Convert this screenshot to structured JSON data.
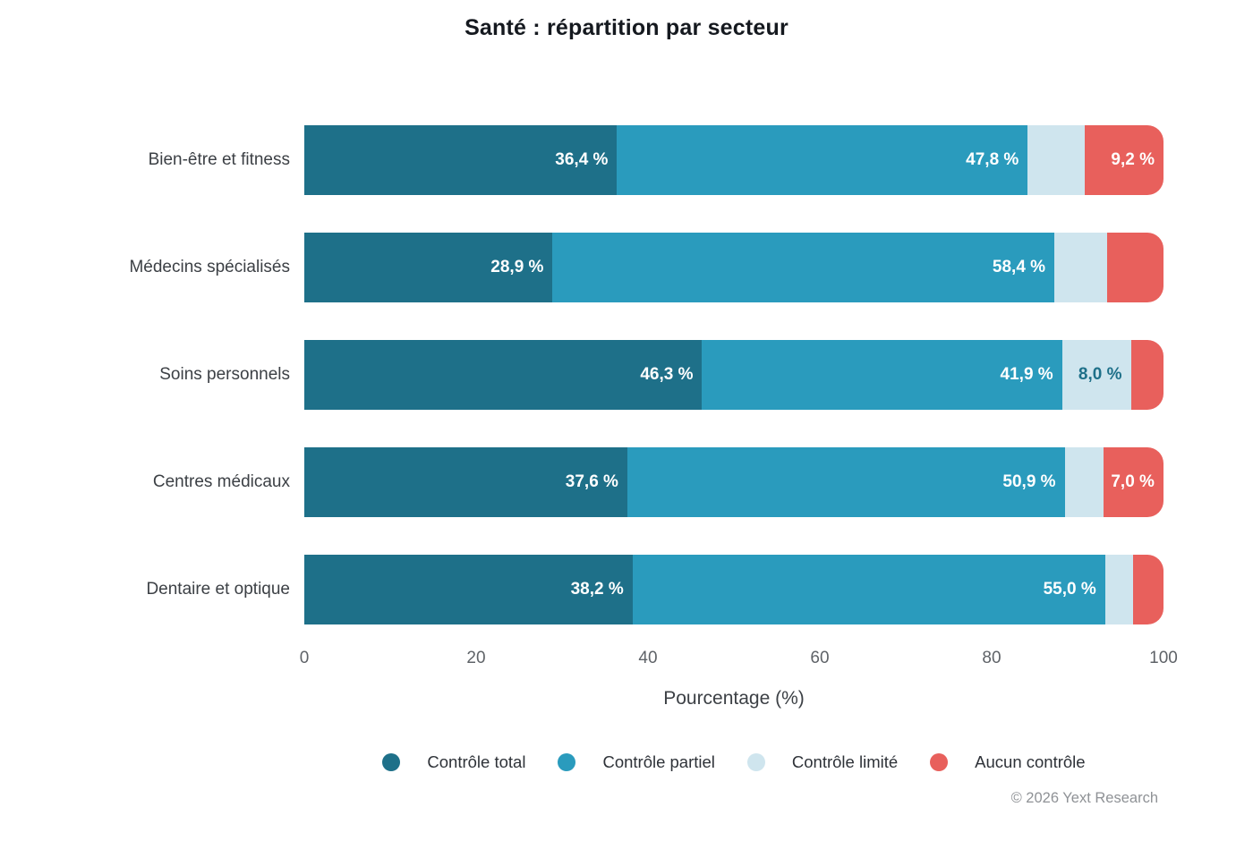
{
  "footer": "© 2026 Yext Research",
  "chart_data": {
    "type": "bar",
    "variant": "horizontal-stacked",
    "title": "Santé : répartition par secteur",
    "xlabel": "Pourcentage (%)",
    "xlim": [
      0,
      100
    ],
    "x_ticks": [
      0,
      20,
      40,
      60,
      80,
      100
    ],
    "grid": false,
    "legend_position": "bottom",
    "categories": [
      "Bien-être et fitness",
      "Médecins spécialisés",
      "Soins personnels",
      "Centres médicaux",
      "Dentaire et optique"
    ],
    "series": [
      {
        "name": "Contrôle total",
        "color": "#1e7089",
        "label_color": "#ffffff",
        "values": [
          36.4,
          28.9,
          46.3,
          37.6,
          38.2
        ],
        "labels": [
          "36,4 %",
          "28,9 %",
          "46,3 %",
          "37,6 %",
          "38,2 %"
        ]
      },
      {
        "name": "Contrôle partiel",
        "color": "#2a9bbd",
        "label_color": "#ffffff",
        "values": [
          47.8,
          58.4,
          41.9,
          50.9,
          55.0
        ],
        "labels": [
          "47,8 %",
          "58,4 %",
          "41,9 %",
          "50,9 %",
          "55,0 %"
        ]
      },
      {
        "name": "Contrôle limité",
        "color": "#cfe5ee",
        "label_color": "#1e7089",
        "values": [
          6.6,
          6.1,
          8.0,
          4.5,
          3.3
        ],
        "labels": [
          null,
          null,
          "8,0 %",
          null,
          null
        ]
      },
      {
        "name": "Aucun contrôle",
        "color": "#e8605c",
        "label_color": "#ffffff",
        "values": [
          9.2,
          6.6,
          3.8,
          7.0,
          3.5
        ],
        "labels": [
          "9,2 %",
          null,
          null,
          "7,0 %",
          null
        ]
      }
    ]
  }
}
